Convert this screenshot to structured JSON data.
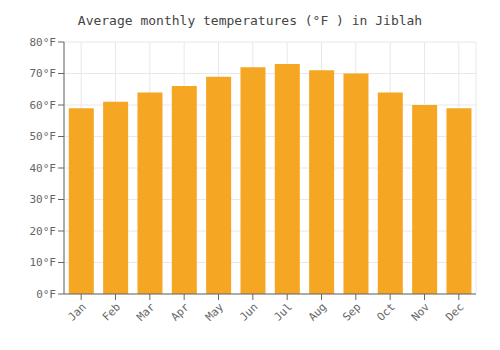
{
  "chart_data": {
    "type": "bar",
    "title": "Average monthly temperatures (°F ) in Jiblah",
    "categories": [
      "Jan",
      "Feb",
      "Mar",
      "Apr",
      "May",
      "Jun",
      "Jul",
      "Aug",
      "Sep",
      "Oct",
      "Nov",
      "Dec"
    ],
    "values": [
      59,
      61,
      64,
      66,
      69,
      72,
      73,
      71,
      70,
      64,
      60,
      59
    ],
    "color": "#F5A623",
    "ylim": [
      0,
      80
    ],
    "yticks": [
      {
        "value": 0,
        "label": "0°F"
      },
      {
        "value": 10,
        "label": "10°F"
      },
      {
        "value": 20,
        "label": "20°F"
      },
      {
        "value": 30,
        "label": "30°F"
      },
      {
        "value": 40,
        "label": "40°F"
      },
      {
        "value": 50,
        "label": "50°F"
      },
      {
        "value": 60,
        "label": "60°F"
      },
      {
        "value": 70,
        "label": "70°F"
      },
      {
        "value": 80,
        "label": "80°F"
      }
    ],
    "grid": true
  }
}
